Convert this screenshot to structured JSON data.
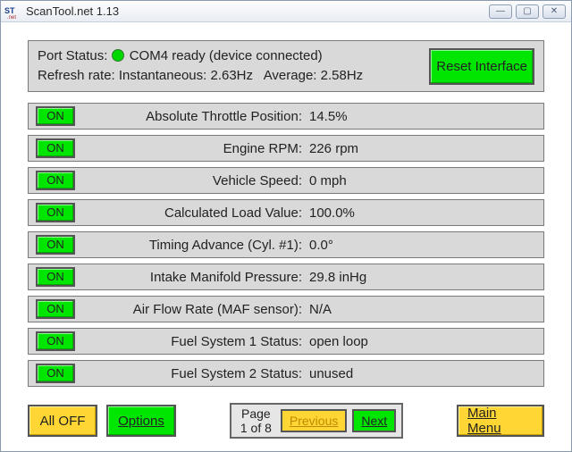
{
  "window": {
    "title": "ScanTool.net 1.13"
  },
  "status": {
    "port_label": "Port Status:",
    "port_text": "COM4 ready (device connected)",
    "refresh_label": "Refresh rate:",
    "instantaneous_label": "Instantaneous:",
    "instantaneous_value": "2.63Hz",
    "average_label": "Average:",
    "average_value": "2.58Hz",
    "reset_label": "Reset Interface",
    "dot_color": "#00d600"
  },
  "sensors": [
    {
      "on": "ON",
      "label": "Absolute Throttle Position:",
      "value": "14.5%"
    },
    {
      "on": "ON",
      "label": "Engine RPM:",
      "value": "226 rpm"
    },
    {
      "on": "ON",
      "label": "Vehicle Speed:",
      "value": "0 mph"
    },
    {
      "on": "ON",
      "label": "Calculated Load Value:",
      "value": "100.0%"
    },
    {
      "on": "ON",
      "label": "Timing Advance (Cyl. #1):",
      "value": "0.0°"
    },
    {
      "on": "ON",
      "label": "Intake Manifold Pressure:",
      "value": "29.8 inHg"
    },
    {
      "on": "ON",
      "label": "Air Flow Rate (MAF sensor):",
      "value": "N/A"
    },
    {
      "on": "ON",
      "label": "Fuel System 1 Status:",
      "value": "open loop"
    },
    {
      "on": "ON",
      "label": "Fuel System 2 Status:",
      "value": "unused"
    }
  ],
  "bottom": {
    "all_off": "All OFF",
    "options": "Options",
    "page_word": "Page",
    "page_num": "1 of 8",
    "previous": "Previous",
    "next": "Next",
    "main_menu": "Main Menu"
  },
  "colors": {
    "green": "#00e600",
    "yellow": "#ffd633",
    "panel_bg": "#d9d9d9",
    "border": "#7a7a7a"
  }
}
